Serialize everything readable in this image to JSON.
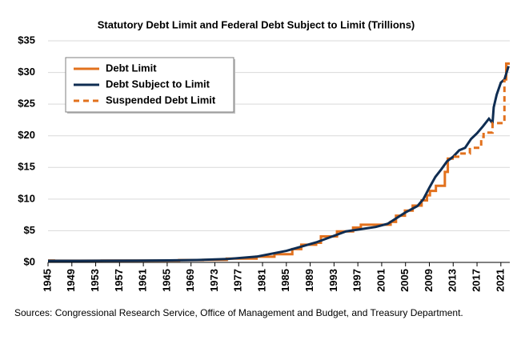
{
  "chart_data": {
    "type": "line",
    "title": "Statutory Debt Limit and Federal Debt Subject to Limit (Trillions)",
    "source": "Sources: Congressional Research Service, Office of Management and Budget, and Treasury Department.",
    "xlim": [
      1945,
      2022.5
    ],
    "xticks": [
      1945,
      1949,
      1953,
      1957,
      1961,
      1965,
      1969,
      1973,
      1977,
      1981,
      1985,
      1989,
      1993,
      1997,
      2001,
      2005,
      2009,
      2013,
      2017,
      2021
    ],
    "ylim": [
      0,
      35
    ],
    "yticks": [
      {
        "value": 0,
        "label": "$0"
      },
      {
        "value": 5,
        "label": "$5"
      },
      {
        "value": 10,
        "label": "$10"
      },
      {
        "value": 15,
        "label": "$15"
      },
      {
        "value": 20,
        "label": "$20"
      },
      {
        "value": 25,
        "label": "$25"
      },
      {
        "value": 30,
        "label": "$30"
      },
      {
        "value": 35,
        "label": "$35"
      }
    ],
    "grid": true,
    "legend": "top-left",
    "series": [
      {
        "name": "Debt Limit",
        "color": "#e2711d",
        "dash": false,
        "x": [
          1945,
          1946,
          1946,
          1954,
          1954,
          1967,
          1967,
          1971,
          1971,
          1975,
          1975,
          1980,
          1980,
          1983,
          1983,
          1986,
          1986,
          1987.5,
          1987.5,
          1990,
          1990,
          1990.8,
          1990.8,
          1993.5,
          1993.5,
          1996.2,
          1996.2,
          1997.5,
          1997.5,
          2002.5,
          2002.5,
          2003.4,
          2003.4,
          2004.9,
          2004.9,
          2006.2,
          2006.2,
          2007.7,
          2007.7,
          2008.6,
          2008.6,
          2009.1,
          2009.1,
          2010.1,
          2010.1,
          2011.6,
          2011.6,
          2012.1,
          2012.1,
          2013.1,
          null,
          2021.6,
          2021.9,
          2021.9,
          2022.5
        ],
        "values": [
          0.3,
          0.3,
          0.275,
          0.275,
          0.28,
          0.28,
          0.36,
          0.36,
          0.4,
          0.4,
          0.6,
          0.6,
          0.9,
          0.9,
          1.3,
          1.3,
          2.1,
          2.1,
          2.8,
          2.8,
          3.1,
          3.1,
          4.1,
          4.1,
          4.9,
          4.9,
          5.5,
          5.5,
          5.95,
          5.95,
          6.4,
          6.4,
          7.38,
          7.38,
          8.18,
          8.18,
          8.97,
          8.97,
          9.8,
          9.8,
          10.6,
          10.6,
          11.3,
          11.3,
          12.1,
          12.1,
          14.3,
          14.3,
          16.4,
          16.4,
          null,
          28.9,
          28.9,
          31.4,
          31.4
        ]
      },
      {
        "name": "Debt Subject to Limit",
        "color": "#0f2d52",
        "dash": false,
        "x": [
          1945,
          1950,
          1960,
          1965,
          1970,
          1975,
          1980,
          1985,
          1990,
          1995,
          2000,
          2002,
          2005,
          2007,
          2008,
          2009,
          2010,
          2011,
          2012,
          2013,
          2014,
          2015,
          2016,
          2017,
          2018,
          2019,
          2019.6,
          2019.8,
          2020.3,
          2021,
          2021.6,
          2022.3
        ],
        "values": [
          0.26,
          0.26,
          0.29,
          0.32,
          0.38,
          0.53,
          0.91,
          1.82,
          3.16,
          4.9,
          5.6,
          6.1,
          7.9,
          8.9,
          10.0,
          11.8,
          13.5,
          14.7,
          16.0,
          16.7,
          17.7,
          18.1,
          19.5,
          20.4,
          21.5,
          22.7,
          22.0,
          24.5,
          26.5,
          28.4,
          28.9,
          31.0
        ]
      },
      {
        "name": "Suspended Debt Limit",
        "color": "#e2711d",
        "dash": true,
        "x": [
          2013.1,
          2014.1,
          2014.1,
          2015.8,
          2015.8,
          2017.7,
          2017.7,
          2018.1,
          2018.1,
          2019.6,
          2019.6,
          2021.6,
          2021.6
        ],
        "values": [
          16.7,
          16.7,
          17.2,
          17.2,
          18.1,
          18.1,
          19.8,
          19.8,
          20.5,
          20.5,
          22.0,
          22.0,
          28.9
        ]
      }
    ]
  }
}
